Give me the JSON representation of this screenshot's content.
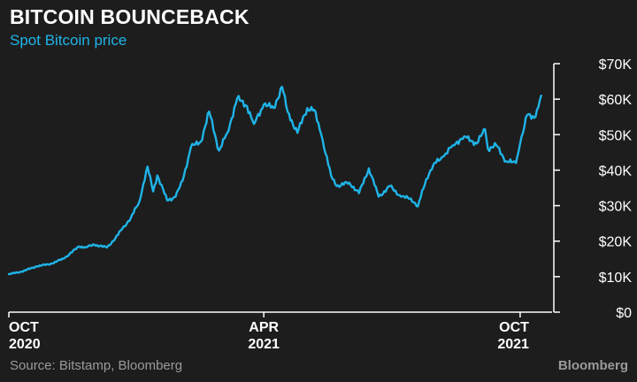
{
  "header": {
    "title": "BITCOIN BOUNCEBACK",
    "subtitle": "Spot Bitcoin price"
  },
  "footer": {
    "source": "Source: Bitstamp, Bloomberg",
    "brand": "Bloomberg"
  },
  "colors": {
    "background": "#1d1d1d",
    "line": "#1fb4e8",
    "axis": "#ffffff",
    "muted": "#9a9a9a"
  },
  "chart_data": {
    "type": "line",
    "title": "BITCOIN BOUNCEBACK",
    "subtitle": "Spot Bitcoin price",
    "xlabel": "",
    "ylabel": "",
    "ylim": [
      0,
      70000
    ],
    "xlim": [
      "2020-10-01",
      "2021-10-20"
    ],
    "grid": false,
    "y_ticks": [
      {
        "value": 0,
        "label": "$0"
      },
      {
        "value": 10000,
        "label": "$10K"
      },
      {
        "value": 20000,
        "label": "$20K"
      },
      {
        "value": 30000,
        "label": "$30K"
      },
      {
        "value": 40000,
        "label": "$40K"
      },
      {
        "value": 50000,
        "label": "$50K"
      },
      {
        "value": 60000,
        "label": "$60K"
      },
      {
        "value": 70000,
        "label": "$70K"
      }
    ],
    "x_ticks": [
      {
        "date": "2020-10-01",
        "line1": "OCT",
        "line2": "2020"
      },
      {
        "date": "2021-04-01",
        "line1": "APR",
        "line2": "2021"
      },
      {
        "date": "2021-10-01",
        "line1": "OCT",
        "line2": "2021"
      }
    ],
    "series": [
      {
        "x": [
          "2020-10-01",
          "2020-10-10",
          "2020-10-21",
          "2020-11-01",
          "2020-11-10",
          "2020-11-20",
          "2020-11-25",
          "2020-12-01",
          "2020-12-10",
          "2020-12-16",
          "2020-12-21",
          "2020-12-27",
          "2021-01-02",
          "2021-01-08",
          "2021-01-12",
          "2021-01-15",
          "2021-01-22",
          "2021-01-28",
          "2021-02-02",
          "2021-02-08",
          "2021-02-15",
          "2021-02-21",
          "2021-02-28",
          "2021-03-06",
          "2021-03-13",
          "2021-03-20",
          "2021-03-25",
          "2021-04-01",
          "2021-04-08",
          "2021-04-14",
          "2021-04-18",
          "2021-04-25",
          "2021-05-02",
          "2021-05-07",
          "2021-05-12",
          "2021-05-19",
          "2021-05-23",
          "2021-06-01",
          "2021-06-08",
          "2021-06-15",
          "2021-06-22",
          "2021-06-30",
          "2021-07-08",
          "2021-07-15",
          "2021-07-20",
          "2021-07-26",
          "2021-07-31",
          "2021-08-07",
          "2021-08-14",
          "2021-08-22",
          "2021-08-31",
          "2021-09-06",
          "2021-09-08",
          "2021-09-14",
          "2021-09-21",
          "2021-09-28",
          "2021-10-01",
          "2021-10-06",
          "2021-10-12",
          "2021-10-16"
        ],
        "values": [
          10700,
          11400,
          12900,
          13700,
          15300,
          18500,
          18300,
          19000,
          18200,
          20800,
          23500,
          26500,
          31000,
          41000,
          34000,
          38500,
          31500,
          32500,
          37000,
          46500,
          48000,
          56500,
          45500,
          50500,
          60200,
          58000,
          53000,
          58500,
          57500,
          63500,
          56500,
          50500,
          57500,
          57000,
          50000,
          38500,
          35500,
          36500,
          33500,
          40500,
          32500,
          35500,
          32500,
          32000,
          29800,
          37500,
          41500,
          43800,
          47000,
          49500,
          47500,
          51500,
          46000,
          47000,
          42500,
          42000,
          47500,
          55500,
          55000,
          61000
        ]
      }
    ]
  }
}
